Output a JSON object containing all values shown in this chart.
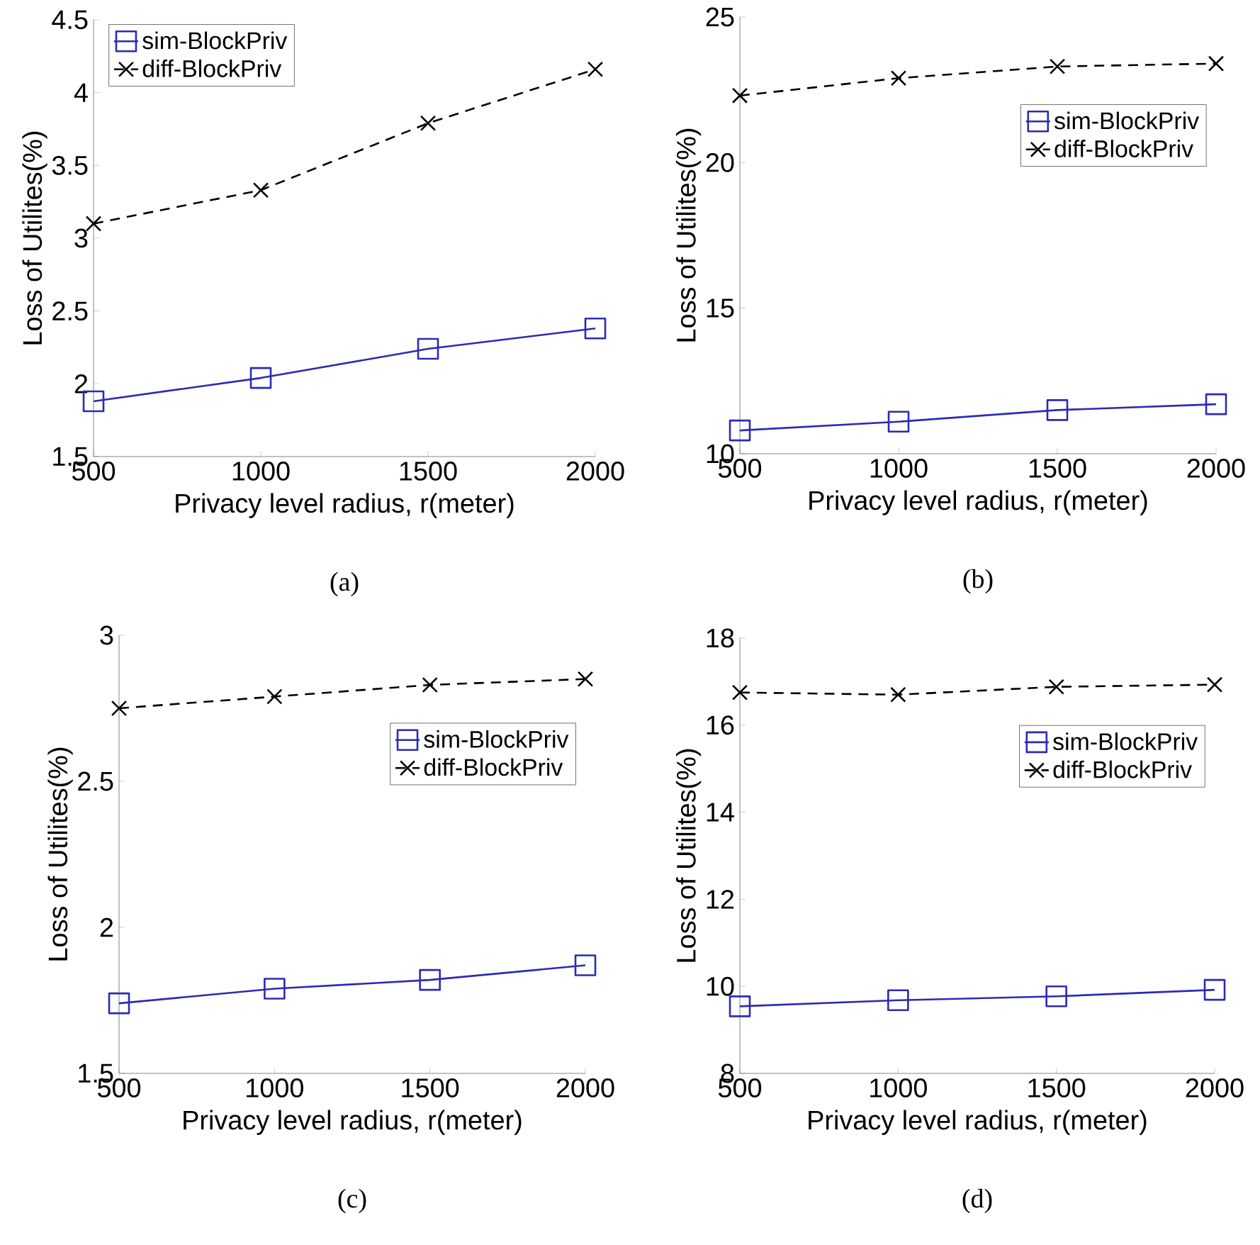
{
  "chart_data": [
    {
      "type": "line",
      "x": [
        500,
        1000,
        1500,
        2000
      ],
      "xlim": [
        500,
        2000
      ],
      "ylim": [
        1.5,
        4.5
      ],
      "xticks": [
        500,
        1000,
        1500,
        2000
      ],
      "yticks": [
        1.5,
        2,
        2.5,
        3,
        3.5,
        4,
        4.5
      ],
      "xlabel": "Privacy level radius, r(meter)",
      "ylabel": "Loss of Utilites(%)",
      "annotations": [
        "(a)"
      ],
      "legend": "top left",
      "grid": false,
      "series": [
        {
          "name": "sim-BlockPriv",
          "color": "#2b2bb5",
          "marker": "square",
          "line_style": "solid",
          "values": [
            1.88,
            2.04,
            2.24,
            2.38
          ]
        },
        {
          "name": "diff-BlockPriv",
          "color": "#000000",
          "marker": "cross",
          "line_style": "dashed",
          "values": [
            3.1,
            3.33,
            3.79,
            4.16
          ]
        }
      ]
    },
    {
      "type": "line",
      "x": [
        500,
        1000,
        1500,
        2000
      ],
      "xlim": [
        500,
        2000
      ],
      "ylim": [
        10,
        25
      ],
      "xticks": [
        500,
        1000,
        1500,
        2000
      ],
      "yticks": [
        10,
        15,
        20,
        25
      ],
      "xlabel": "Privacy level radius, r(meter)",
      "ylabel": "Loss of Utilites(%)",
      "annotations": [
        "(b)"
      ],
      "legend": "top right",
      "grid": false,
      "series": [
        {
          "name": "sim-BlockPriv",
          "color": "#2b2bb5",
          "marker": "square",
          "line_style": "solid",
          "values": [
            10.8,
            11.1,
            11.5,
            11.7
          ]
        },
        {
          "name": "diff-BlockPriv",
          "color": "#000000",
          "marker": "cross",
          "line_style": "dashed",
          "values": [
            22.3,
            22.9,
            23.3,
            23.4
          ]
        }
      ]
    },
    {
      "type": "line",
      "x": [
        500,
        1000,
        1500,
        2000
      ],
      "xlim": [
        500,
        2000
      ],
      "ylim": [
        1.5,
        3
      ],
      "xticks": [
        500,
        1000,
        1500,
        2000
      ],
      "yticks": [
        1.5,
        2,
        2.5,
        3
      ],
      "xlabel": "Privacy level radius, r(meter)",
      "ylabel": "Loss of Utilites(%)",
      "annotations": [
        "(c)"
      ],
      "legend": "top right",
      "grid": false,
      "series": [
        {
          "name": "sim-BlockPriv",
          "color": "#2b2bb5",
          "marker": "square",
          "line_style": "solid",
          "values": [
            1.74,
            1.79,
            1.82,
            1.87
          ]
        },
        {
          "name": "diff-BlockPriv",
          "color": "#000000",
          "marker": "cross",
          "line_style": "dashed",
          "values": [
            2.75,
            2.79,
            2.83,
            2.85
          ]
        }
      ]
    },
    {
      "type": "line",
      "x": [
        500,
        1000,
        1500,
        2000
      ],
      "xlim": [
        500,
        2000
      ],
      "ylim": [
        8,
        18
      ],
      "xticks": [
        500,
        1000,
        1500,
        2000
      ],
      "yticks": [
        8,
        10,
        12,
        14,
        16,
        18
      ],
      "xlabel": "Privacy level radius, r(meter)",
      "ylabel": "Loss of Utilites(%)",
      "annotations": [
        "(d)"
      ],
      "legend": "top right",
      "grid": false,
      "series": [
        {
          "name": "sim-BlockPriv",
          "color": "#2b2bb5",
          "marker": "square",
          "line_style": "solid",
          "values": [
            9.54,
            9.68,
            9.77,
            9.92
          ]
        },
        {
          "name": "diff-BlockPriv",
          "color": "#000000",
          "marker": "cross",
          "line_style": "dashed",
          "values": [
            16.75,
            16.7,
            16.88,
            16.93
          ]
        }
      ]
    }
  ]
}
